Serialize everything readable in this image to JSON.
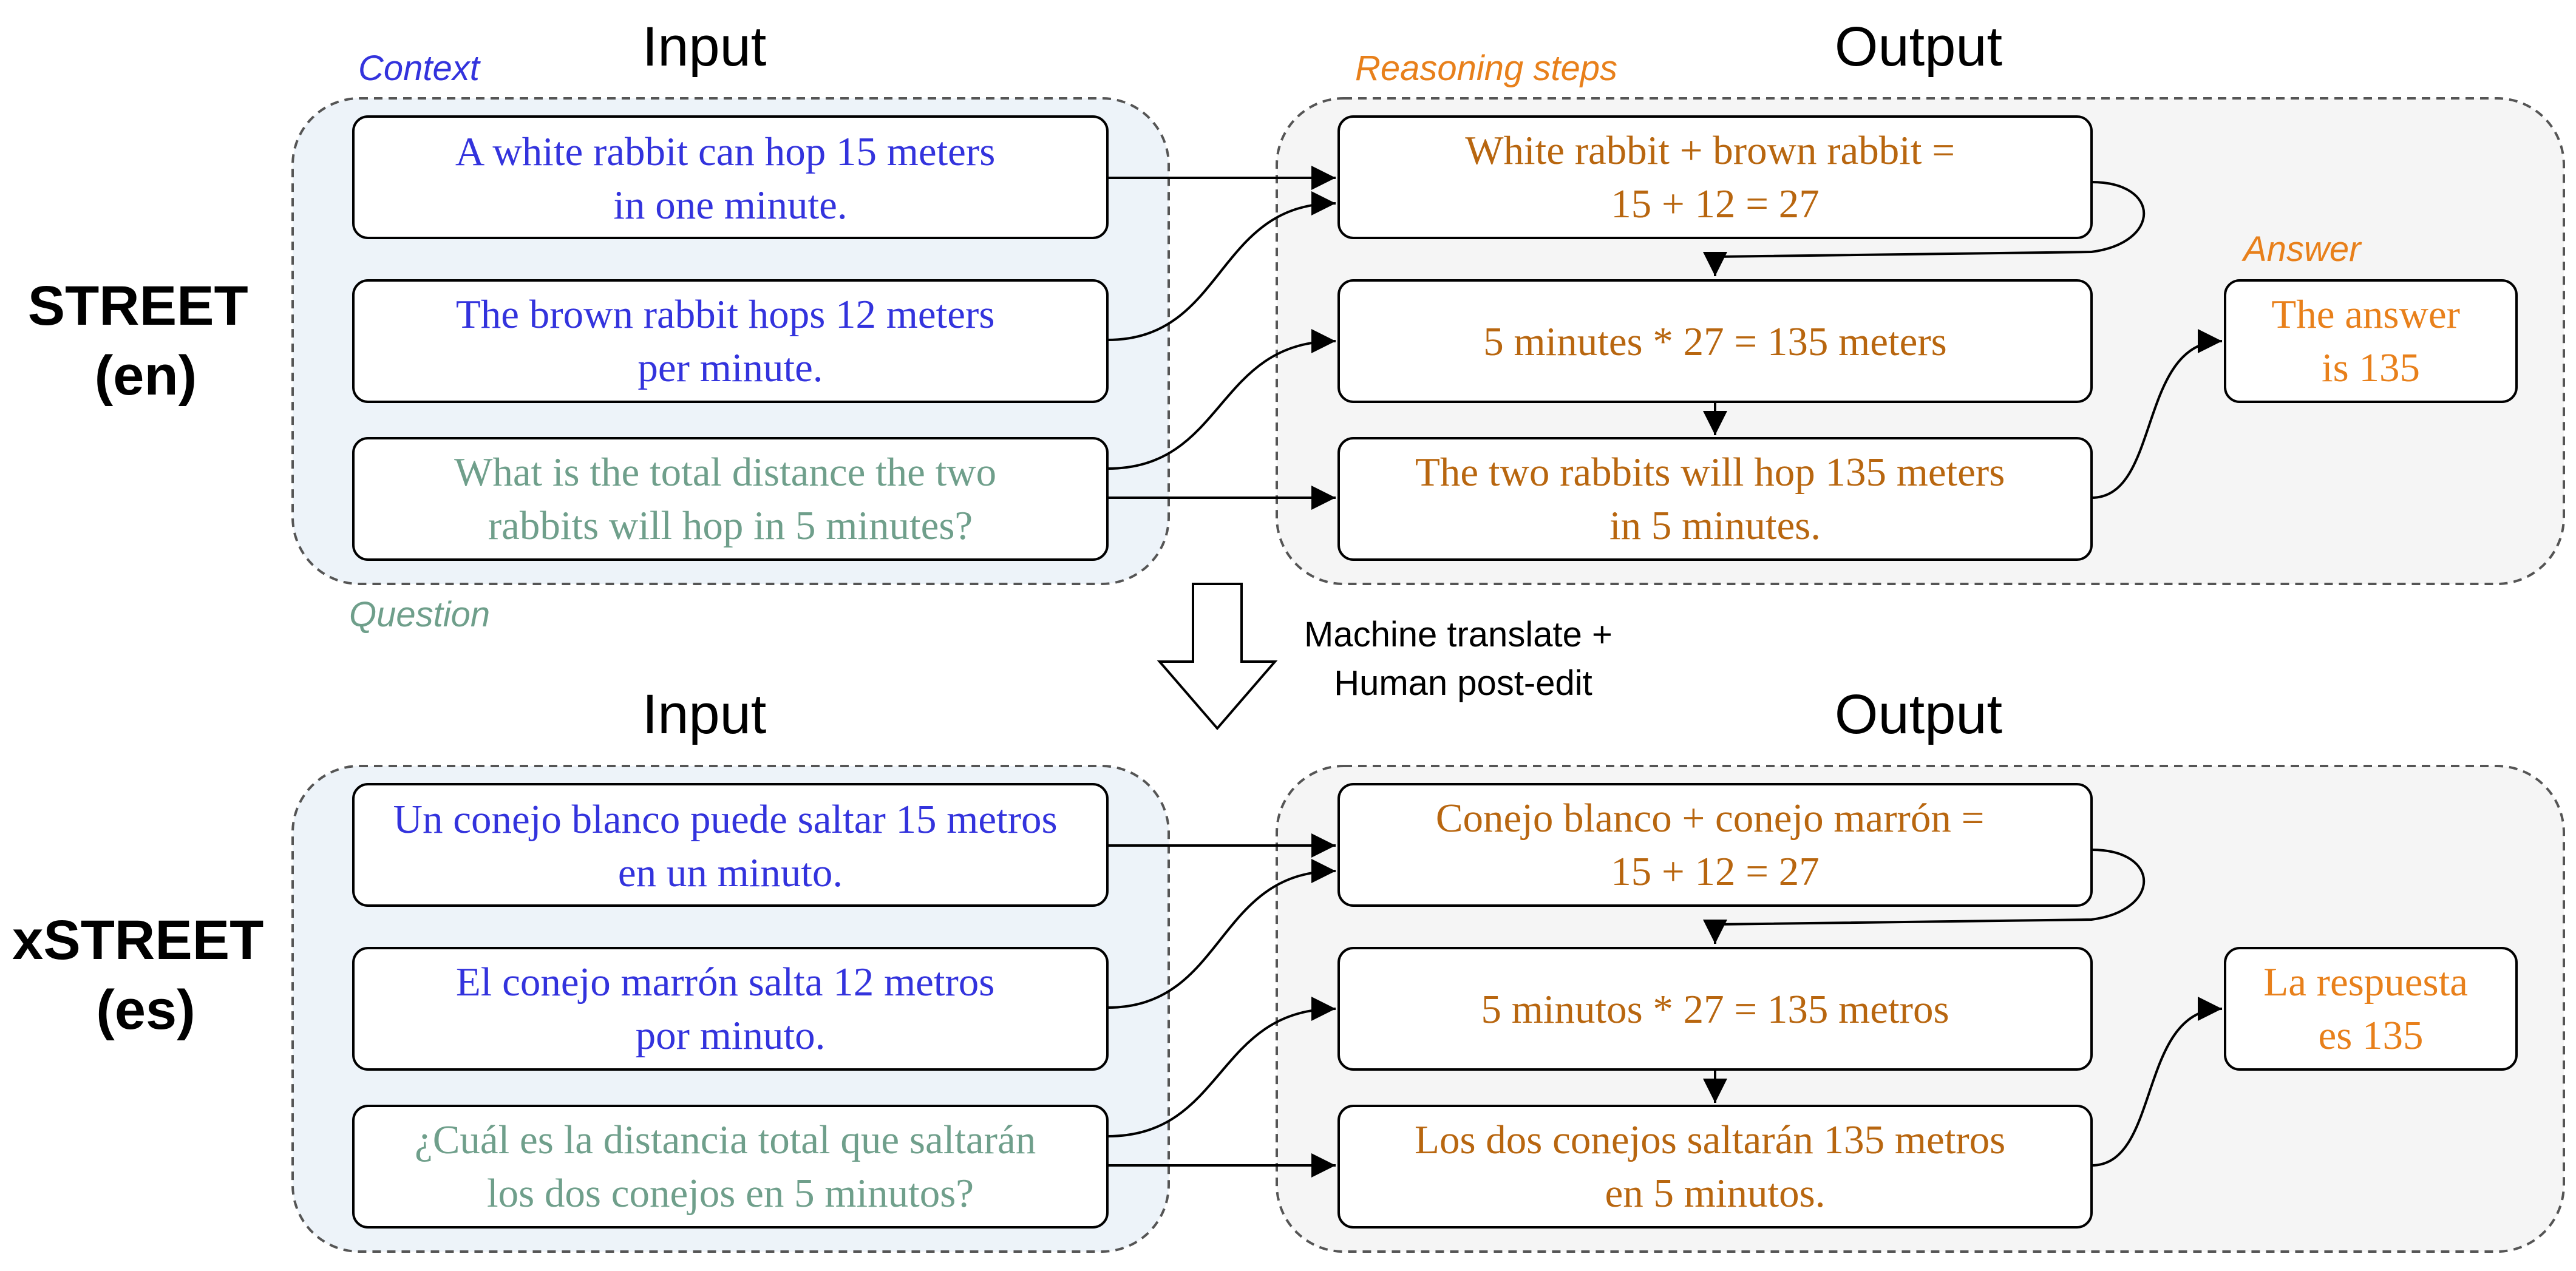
{
  "colors": {
    "context": "#3333dd",
    "question": "#6f9f8b",
    "reasoning": "#b8660f",
    "answer": "#e8801b",
    "input_panel": "#edf3f9",
    "output_panel": "#f5f5f5"
  },
  "en": {
    "title_line1": "STREET",
    "title_line2": "(en)",
    "input_heading": "Input",
    "output_heading": "Output",
    "context_label": "Context",
    "reasoning_label": "Reasoning steps",
    "answer_label": "Answer",
    "question_label": "Question",
    "context1": [
      "A white rabbit can hop 15 meters",
      "in one minute."
    ],
    "context2": [
      "The brown rabbit hops 12 meters",
      "per minute."
    ],
    "question": [
      "What is the total distance the two",
      "rabbits will hop in 5 minutes?"
    ],
    "step1": [
      "White rabbit + brown rabbit =",
      "15 + 12 = 27"
    ],
    "step2": [
      "5 minutes * 27 = 135 meters"
    ],
    "step3": [
      "The two rabbits will hop 135 meters",
      "in 5 minutes."
    ],
    "answer": [
      "The answer",
      "is 135"
    ]
  },
  "translate_note": [
    "Machine translate +",
    "Human post-edit"
  ],
  "es": {
    "title_line1": "xSTREET",
    "title_line2": "(es)",
    "input_heading": "Input",
    "output_heading": "Output",
    "context1": [
      "Un conejo blanco puede saltar 15 metros",
      "en un minuto."
    ],
    "context2": [
      "El conejo marrón salta 12 metros",
      "por minuto."
    ],
    "question": [
      "¿Cuál es la distancia total que saltarán",
      "los dos conejos en 5 minutos?"
    ],
    "step1": [
      "Conejo blanco + conejo marrón =",
      "15 + 12 = 27"
    ],
    "step2": [
      "5 minutos * 27 = 135 metros"
    ],
    "step3": [
      "Los dos conejos saltarán 135 metros",
      "en 5 minutos."
    ],
    "answer": [
      "La respuesta",
      "es 135"
    ]
  }
}
